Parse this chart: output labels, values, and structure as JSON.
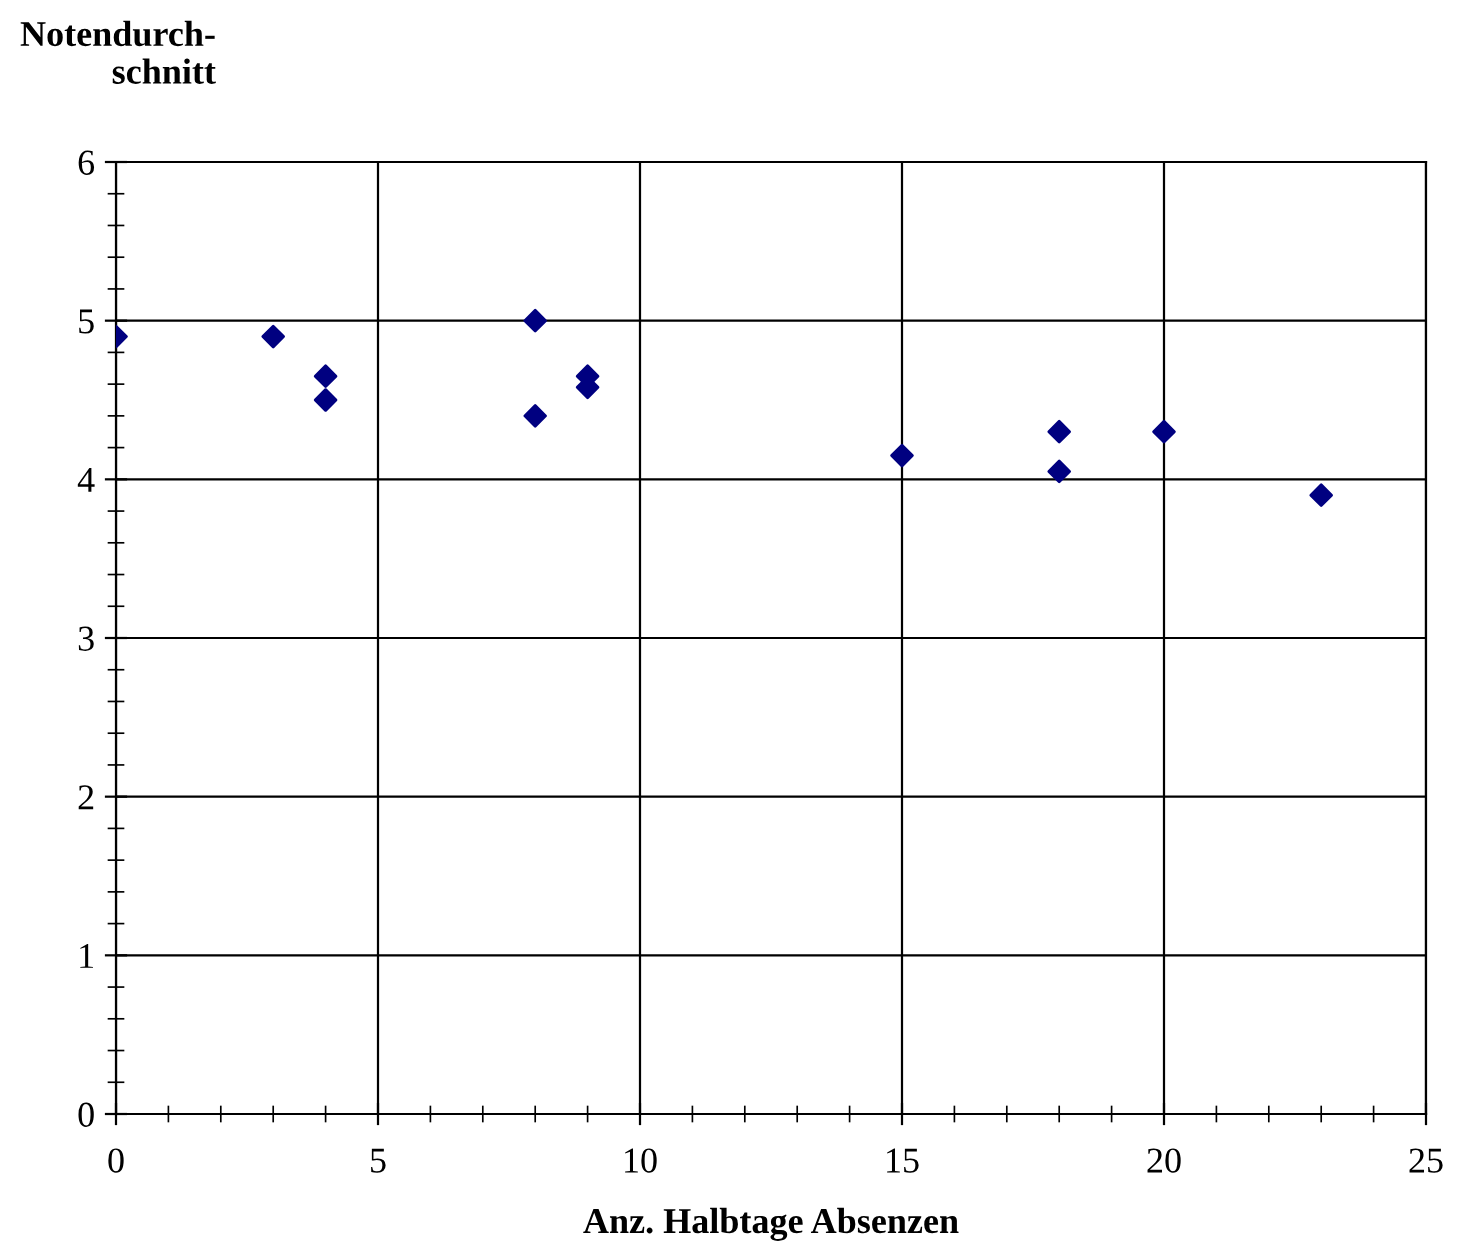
{
  "chart_data": {
    "type": "scatter",
    "xlabel": "Anz. Halbtage Absenzen",
    "ylabel": "Notendurch-\nschnitt",
    "x": [
      0,
      3,
      4,
      4,
      8,
      8,
      9,
      9,
      15,
      18,
      18,
      20,
      23
    ],
    "series": [
      {
        "color": "#000080",
        "values": [
          4.9,
          4.9,
          4.65,
          4.5,
          5.0,
          4.4,
          4.65,
          4.58,
          4.15,
          4.3,
          4.05,
          4.3,
          3.9
        ]
      }
    ],
    "marker": "diamond",
    "grid": true,
    "xlim": [
      0,
      25
    ],
    "ylim": [
      0,
      6
    ],
    "xticks": [
      0,
      {
        "value": 1,
        "label": null
      },
      {
        "value": 2,
        "label": null
      },
      {
        "value": 3,
        "label": null
      },
      {
        "value": 4,
        "label": null
      },
      5,
      {
        "value": 6,
        "label": null
      },
      {
        "value": 7,
        "label": null
      },
      {
        "value": 8,
        "label": null
      },
      {
        "value": 9,
        "label": null
      },
      10,
      {
        "value": 11,
        "label": null
      },
      {
        "value": 12,
        "label": null
      },
      {
        "value": 13,
        "label": null
      },
      {
        "value": 14,
        "label": null
      },
      15,
      {
        "value": 16,
        "label": null
      },
      {
        "value": 17,
        "label": null
      },
      {
        "value": 18,
        "label": null
      },
      {
        "value": 19,
        "label": null
      },
      20,
      {
        "value": 21,
        "label": null
      },
      {
        "value": 22,
        "label": null
      },
      {
        "value": 23,
        "label": null
      },
      {
        "value": 24,
        "label": null
      },
      25
    ],
    "yticks": [
      0,
      {
        "value": 0.2,
        "label": null
      },
      {
        "value": 0.4,
        "label": null
      },
      {
        "value": 0.6,
        "label": null
      },
      {
        "value": 0.8,
        "label": null
      },
      1,
      {
        "value": 1.2,
        "label": null
      },
      {
        "value": 1.4,
        "label": null
      },
      {
        "value": 1.6,
        "label": null
      },
      {
        "value": 1.8,
        "label": null
      },
      2,
      {
        "value": 2.2,
        "label": null
      },
      {
        "value": 2.4,
        "label": null
      },
      {
        "value": 2.6,
        "label": null
      },
      {
        "value": 2.8,
        "label": null
      },
      3,
      {
        "value": 3.2,
        "label": null
      },
      {
        "value": 3.4,
        "label": null
      },
      {
        "value": 3.6,
        "label": null
      },
      {
        "value": 3.8,
        "label": null
      },
      4,
      {
        "value": 4.2,
        "label": null
      },
      {
        "value": 4.4,
        "label": null
      },
      {
        "value": 4.6,
        "label": null
      },
      {
        "value": 4.8,
        "label": null
      },
      5,
      {
        "value": 5.2,
        "label": null
      },
      {
        "value": 5.4,
        "label": null
      },
      {
        "value": 5.6,
        "label": null
      },
      {
        "value": 5.8,
        "label": null
      },
      6
    ]
  }
}
